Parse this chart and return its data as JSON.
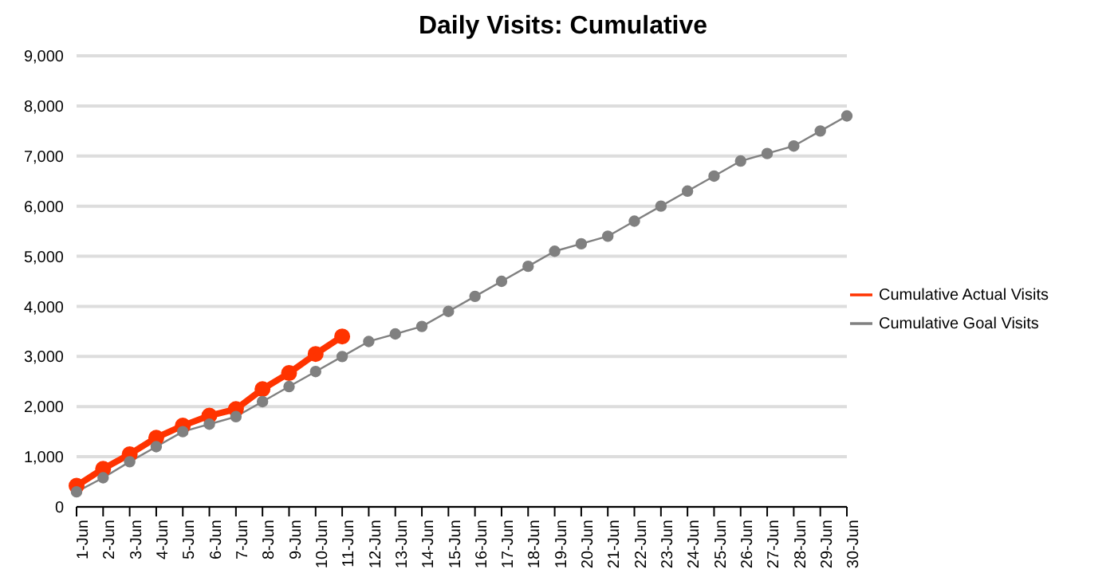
{
  "chart_data": {
    "type": "line",
    "title": "Daily Visits: Cumulative",
    "categories": [
      "1-Jun",
      "2-Jun",
      "3-Jun",
      "4-Jun",
      "5-Jun",
      "6-Jun",
      "7-Jun",
      "8-Jun",
      "9-Jun",
      "10-Jun",
      "11-Jun",
      "12-Jun",
      "13-Jun",
      "14-Jun",
      "15-Jun",
      "16-Jun",
      "17-Jun",
      "18-Jun",
      "19-Jun",
      "20-Jun",
      "21-Jun",
      "22-Jun",
      "23-Jun",
      "24-Jun",
      "25-Jun",
      "26-Jun",
      "27-Jun",
      "28-Jun",
      "29-Jun",
      "30-Jun"
    ],
    "series": [
      {
        "name": "Cumulative Actual Visits",
        "color": "#ff3300",
        "values": [
          420,
          760,
          1050,
          1380,
          1620,
          1820,
          1950,
          2350,
          2670,
          3050,
          3400,
          null,
          null,
          null,
          null,
          null,
          null,
          null,
          null,
          null,
          null,
          null,
          null,
          null,
          null,
          null,
          null,
          null,
          null,
          null
        ]
      },
      {
        "name": "Cumulative Goal Visits",
        "color": "#808080",
        "values": [
          300,
          580,
          900,
          1200,
          1500,
          1650,
          1800,
          2100,
          2400,
          2700,
          3000,
          3300,
          3450,
          3600,
          3900,
          4200,
          4500,
          4800,
          5100,
          5250,
          5400,
          5700,
          6000,
          6300,
          6600,
          6900,
          7050,
          7200,
          7500,
          7800
        ]
      }
    ],
    "ylim": [
      0,
      9000
    ],
    "yticks": [
      {
        "value": 0,
        "label": "0"
      },
      {
        "value": 1000,
        "label": "1,000"
      },
      {
        "value": 2000,
        "label": "2,000"
      },
      {
        "value": 3000,
        "label": "3,000"
      },
      {
        "value": 4000,
        "label": "4,000"
      },
      {
        "value": 5000,
        "label": "5,000"
      },
      {
        "value": 6000,
        "label": "6,000"
      },
      {
        "value": 7000,
        "label": "7,000"
      },
      {
        "value": 8000,
        "label": "8,000"
      },
      {
        "value": 9000,
        "label": "9,000"
      }
    ],
    "grid": "y",
    "legend": "right",
    "marker": "circle"
  }
}
